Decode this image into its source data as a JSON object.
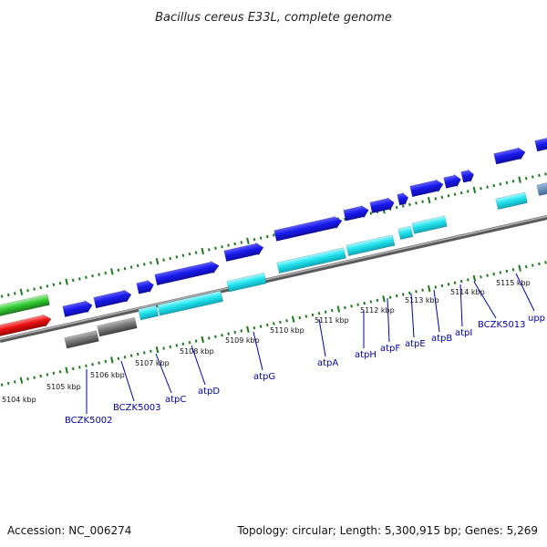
{
  "title": "Bacillus cereus E33L, complete genome",
  "footer": {
    "accession": "Accession: NC_006274",
    "topology": "Topology: circular; Length: 5,300,915 bp; Genes: 5,269"
  },
  "colors": {
    "plus_strand_gene": "#1a1aee",
    "cds_plus": "#22e5ee",
    "rna_gene": "#7a7a7a",
    "left_green": "#33cc33",
    "left_red": "#ee1111",
    "tick": "#1a7a1a",
    "label": "#0000a8",
    "backbone": "#808080"
  },
  "kbp_labels": [
    "5104 kbp",
    "5105 kbp",
    "5106 kbp",
    "5107 kbp",
    "5108 kbp",
    "5109 kbp",
    "5110 kbp",
    "5111 kbp",
    "5112 kbp",
    "5113 kbp",
    "5114 kbp",
    "5115 kbp"
  ],
  "gene_labels": [
    "BCZK5002",
    "BCZK5003",
    "atpC",
    "atpD",
    "atpG",
    "atpA",
    "atpH",
    "atpF",
    "atpE",
    "atpB",
    "atpI",
    "BCZK5013",
    "upp"
  ]
}
